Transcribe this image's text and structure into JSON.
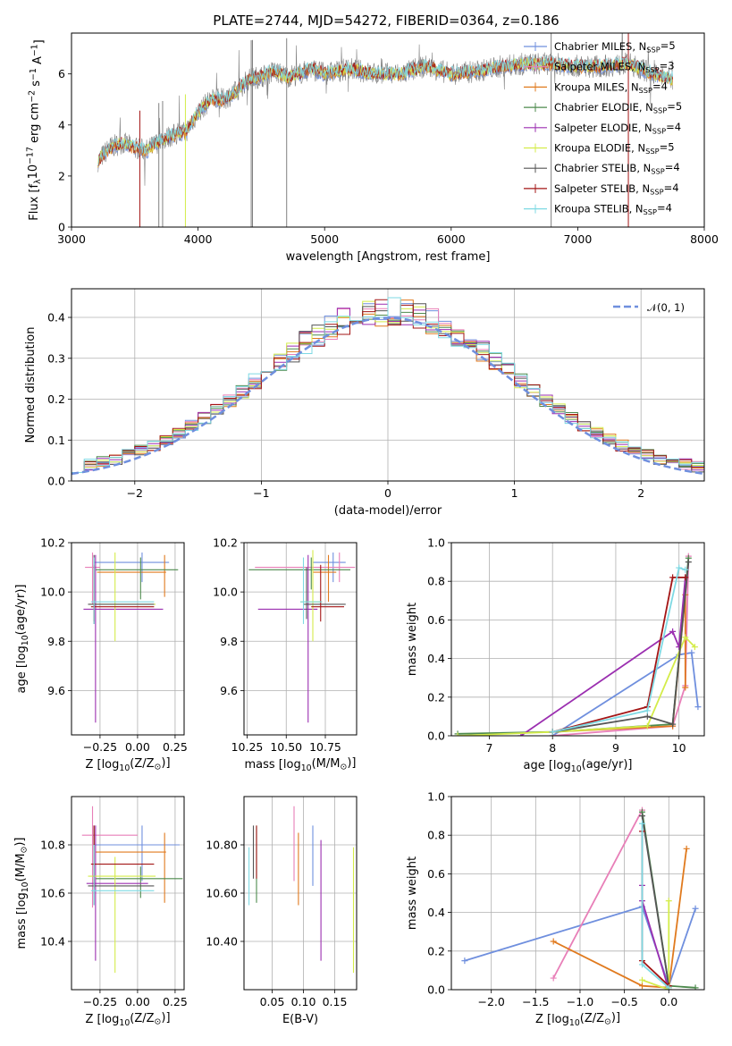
{
  "title": "PLATE=2744, MJD=54272, FIBERID=0364, z=0.186",
  "colors": [
    "#6f8fde",
    "#e87fb8",
    "#e07a1e",
    "#4d8a4d",
    "#9b2fb0",
    "#d4ec4a",
    "#555555",
    "#a31515",
    "#7ed9e3"
  ],
  "legend_labels": [
    "Chabrier MILES, N<sub>SSP</sub>=5",
    "Salpeter MILES, N<sub>SSP</sub>=3",
    "Kroupa MILES, N<sub>SSP</sub>=4",
    "Chabrier ELODIE, N<sub>SSP</sub>=5",
    "Salpeter ELODIE, N<sub>SSP</sub>=4",
    "Kroupa ELODIE, N<sub>SSP</sub>=5",
    "Chabrier STELIB, N<sub>SSP</sub>=4",
    "Salpeter STELIB, N<sub>SSP</sub>=4",
    "Kroupa STELIB, N<sub>SSP</sub>=4"
  ],
  "chart_data": [
    {
      "id": "spectrum",
      "type": "line",
      "xlabel": "wavelength [Angstrom, rest frame]",
      "ylabel": "Flux [f<sub>λ</sub>10<sup>−17</sup> erg cm<sup>−2</sup> s<sup>−1</sup> A<sup>−1</sup>]",
      "xlim": [
        3000,
        8000
      ],
      "ylim": [
        0,
        7.6
      ],
      "xticks": [
        3000,
        4000,
        5000,
        6000,
        7000,
        8000
      ],
      "yticks": [
        0,
        2,
        4,
        6
      ],
      "data_color": "#808080",
      "data_envelope": {
        "x": [
          3210,
          3300,
          3400,
          3500,
          3600,
          3700,
          3800,
          3900,
          4000,
          4100,
          4200,
          4300,
          4400,
          4500,
          4600,
          4700,
          4800,
          4900,
          5000,
          5200,
          5400,
          5600,
          5800,
          6000,
          6200,
          6400,
          6600,
          6800,
          7000,
          7200,
          7400,
          7600,
          7750
        ],
        "y": [
          2.6,
          3.1,
          3.3,
          3.1,
          3.0,
          3.4,
          3.6,
          3.7,
          4.5,
          5.0,
          5.0,
          5.3,
          5.8,
          5.9,
          6.1,
          5.9,
          6.0,
          6.2,
          6.0,
          6.2,
          6.0,
          6.0,
          6.3,
          6.0,
          6.1,
          6.3,
          6.4,
          6.4,
          6.3,
          6.3,
          6.4,
          6.0,
          5.8
        ]
      },
      "deep_spikes_x": [
        3540,
        3690,
        3720,
        3900,
        4420,
        4430,
        4700,
        6790,
        7400
      ],
      "model_color": "#7ed9e3"
    },
    {
      "id": "residuals",
      "type": "step",
      "xlabel": "(data-model)/error",
      "ylabel": "Normed distribution",
      "xlim": [
        -2.5,
        2.5
      ],
      "ylim": [
        0,
        0.47
      ],
      "xticks": [
        -2,
        -1,
        0,
        1,
        2
      ],
      "yticks": [
        0.0,
        0.1,
        0.2,
        0.3,
        0.4
      ],
      "bin_width": 0.1,
      "gaussian_label": "𝒩(0, 1)",
      "gaussian_color": "#6f8fde"
    },
    {
      "id": "age_vs_Z",
      "type": "errorbar",
      "xlabel": "Z [log<sub>10</sub>(Z/Z<sub>⊙</sub>)]",
      "ylabel": "age  [log<sub>10</sub>(age/yr)]",
      "xlim": [
        -0.44,
        0.31
      ],
      "ylim": [
        9.42,
        10.2
      ],
      "xticks": [
        -0.25,
        0.0,
        0.25
      ],
      "xticklabels": [
        "−0.25",
        "0.00",
        "0.25"
      ],
      "yticks": [
        9.6,
        9.8,
        10.0,
        10.2
      ],
      "points": [
        {
          "x": 0.03,
          "xerr": [
            0.32,
            0.18
          ],
          "y": 10.12,
          "yerr": [
            0.08,
            0.04
          ],
          "c": 0
        },
        {
          "x": -0.3,
          "xerr": [
            0.05,
            0.05
          ],
          "y": 10.1,
          "yerr": [
            0.15,
            0.06
          ],
          "c": 1
        },
        {
          "x": 0.18,
          "xerr": [
            0.45,
            0.01
          ],
          "y": 10.08,
          "yerr": [
            0.1,
            0.07
          ],
          "c": 2
        },
        {
          "x": 0.02,
          "xerr": [
            0.3,
            0.25
          ],
          "y": 10.09,
          "yerr": [
            0.12,
            0.05
          ],
          "c": 3
        },
        {
          "x": -0.28,
          "xerr": [
            0.08,
            0.45
          ],
          "y": 9.93,
          "yerr": [
            0.46,
            0.22
          ],
          "c": 4
        },
        {
          "x": -0.15,
          "xerr": [
            0.17,
            0.27
          ],
          "y": 9.95,
          "yerr": [
            0.15,
            0.21
          ],
          "c": 5
        },
        {
          "x": -0.29,
          "xerr": [
            0.04,
            0.4
          ],
          "y": 9.95,
          "yerr": [
            0.08,
            0.2
          ],
          "c": 6
        },
        {
          "x": -0.29,
          "xerr": [
            0.02,
            0.4
          ],
          "y": 9.94,
          "yerr": [
            0.06,
            0.17
          ],
          "c": 7
        },
        {
          "x": -0.29,
          "xerr": [
            0.02,
            0.4
          ],
          "y": 9.96,
          "yerr": [
            0.09,
            0.18
          ],
          "c": 8
        }
      ]
    },
    {
      "id": "age_vs_mass",
      "type": "errorbar",
      "xlabel": "mass [log<sub>10</sub>(M/M<sub>⊙</sub>)]",
      "ylabel": "",
      "xlim": [
        10.23,
        10.95
      ],
      "ylim": [
        9.42,
        10.2
      ],
      "xticks": [
        10.25,
        10.5,
        10.75
      ],
      "xticklabels": [
        "10.25",
        "10.50",
        "10.75"
      ],
      "yticks": [
        9.6,
        9.8,
        10.0,
        10.2
      ],
      "points": [
        {
          "x": 10.8,
          "xerr": [
            0.13,
            0.08
          ],
          "y": 10.12,
          "yerr": [
            0.08,
            0.04
          ],
          "c": 0
        },
        {
          "x": 10.84,
          "xerr": [
            0.54,
            0.1
          ],
          "y": 10.1,
          "yerr": [
            0.06,
            0.06
          ],
          "c": 1
        },
        {
          "x": 10.77,
          "xerr": [
            0.1,
            0.05
          ],
          "y": 10.08,
          "yerr": [
            0.12,
            0.07
          ],
          "c": 2
        },
        {
          "x": 10.66,
          "xerr": [
            0.4,
            0.25
          ],
          "y": 10.09,
          "yerr": [
            0.08,
            0.05
          ],
          "c": 3
        },
        {
          "x": 10.64,
          "xerr": [
            0.32,
            0.06
          ],
          "y": 9.93,
          "yerr": [
            0.46,
            0.22
          ],
          "c": 4
        },
        {
          "x": 10.67,
          "xerr": [
            0.08,
            0.06
          ],
          "y": 9.96,
          "yerr": [
            0.16,
            0.21
          ],
          "c": 5
        },
        {
          "x": 10.63,
          "xerr": [
            0.02,
            0.25
          ],
          "y": 9.95,
          "yerr": [
            0.06,
            0.15
          ],
          "c": 6
        },
        {
          "x": 10.72,
          "xerr": [
            0.06,
            0.15
          ],
          "y": 9.94,
          "yerr": [
            0.06,
            0.17
          ],
          "c": 7
        },
        {
          "x": 10.61,
          "xerr": [
            0.02,
            0.12
          ],
          "y": 9.96,
          "yerr": [
            0.09,
            0.18
          ],
          "c": 8
        }
      ]
    },
    {
      "id": "weight_vs_age",
      "type": "line",
      "xlabel": "age  [log<sub>10</sub>(age/yr)]",
      "ylabel": "mass weight",
      "xlim": [
        6.4,
        10.4
      ],
      "ylim": [
        0,
        1.0
      ],
      "xticks": [
        7,
        8,
        9,
        10
      ],
      "yticks": [
        0.0,
        0.2,
        0.4,
        0.6,
        0.8,
        1.0
      ],
      "series": [
        {
          "c": 0,
          "x": [
            8.0,
            10.0,
            10.2,
            10.3
          ],
          "y": [
            0.0,
            0.42,
            0.43,
            0.15
          ]
        },
        {
          "c": 1,
          "x": [
            8.0,
            9.9,
            10.1,
            10.15
          ],
          "y": [
            0.0,
            0.05,
            0.26,
            0.93
          ]
        },
        {
          "c": 2,
          "x": [
            8.0,
            9.9,
            10.1,
            10.1
          ],
          "y": [
            0.02,
            0.05,
            0.73,
            0.25
          ]
        },
        {
          "c": 3,
          "x": [
            6.5,
            8.0,
            9.9,
            10.15
          ],
          "y": [
            0.01,
            0.02,
            0.06,
            0.92
          ]
        },
        {
          "c": 4,
          "x": [
            7.5,
            9.9,
            10.0,
            10.1
          ],
          "y": [
            0.0,
            0.54,
            0.46,
            0.82
          ]
        },
        {
          "c": 5,
          "x": [
            6.5,
            8.0,
            9.5,
            10.1,
            10.25
          ],
          "y": [
            0.0,
            0.02,
            0.05,
            0.51,
            0.46
          ]
        },
        {
          "c": 6,
          "x": [
            8.0,
            9.5,
            9.9,
            10.15
          ],
          "y": [
            0.02,
            0.1,
            0.06,
            0.9
          ]
        },
        {
          "c": 7,
          "x": [
            8.0,
            9.5,
            9.9,
            10.1
          ],
          "y": [
            0.02,
            0.15,
            0.82,
            0.82
          ]
        },
        {
          "c": 8,
          "x": [
            8.0,
            9.5,
            10.0,
            10.1
          ],
          "y": [
            0.02,
            0.13,
            0.87,
            0.86
          ]
        }
      ]
    },
    {
      "id": "mass_vs_Z",
      "type": "errorbar",
      "xlabel": "Z [log<sub>10</sub>(Z/Z<sub>⊙</sub>)]",
      "ylabel": "mass [log<sub>10</sub>(M/M<sub>⊙</sub>)]",
      "xlim": [
        -0.44,
        0.31
      ],
      "ylim": [
        10.2,
        11.0
      ],
      "xticks": [
        -0.25,
        0.0,
        0.25
      ],
      "xticklabels": [
        "−0.25",
        "0.00",
        "0.25"
      ],
      "yticks": [
        10.4,
        10.6,
        10.8
      ],
      "points": [
        {
          "x": 0.03,
          "xerr": [
            0.32,
            0.25
          ],
          "y": 10.8,
          "yerr": [
            0.15,
            0.08
          ],
          "c": 0
        },
        {
          "x": -0.3,
          "xerr": [
            0.07,
            0.3
          ],
          "y": 10.84,
          "yerr": [
            0.3,
            0.12
          ],
          "c": 1
        },
        {
          "x": 0.18,
          "xerr": [
            0.46,
            0.01
          ],
          "y": 10.77,
          "yerr": [
            0.21,
            0.08
          ],
          "c": 2
        },
        {
          "x": 0.02,
          "xerr": [
            0.3,
            0.28
          ],
          "y": 10.66,
          "yerr": [
            0.08,
            0.05
          ],
          "c": 3
        },
        {
          "x": -0.28,
          "xerr": [
            0.06,
            0.35
          ],
          "y": 10.64,
          "yerr": [
            0.32,
            0.24
          ],
          "c": 4
        },
        {
          "x": -0.15,
          "xerr": [
            0.18,
            0.27
          ],
          "y": 10.67,
          "yerr": [
            0.4,
            0.08
          ],
          "c": 5
        },
        {
          "x": -0.29,
          "xerr": [
            0.04,
            0.4
          ],
          "y": 10.63,
          "yerr": [
            0.08,
            0.25
          ],
          "c": 6
        },
        {
          "x": -0.29,
          "xerr": [
            0.02,
            0.4
          ],
          "y": 10.72,
          "yerr": [
            0.1,
            0.16
          ],
          "c": 7
        },
        {
          "x": -0.29,
          "xerr": [
            0.02,
            0.4
          ],
          "y": 10.61,
          "yerr": [
            0.06,
            0.19
          ],
          "c": 8
        }
      ]
    },
    {
      "id": "mass_vs_EBV",
      "type": "errorbar",
      "xlabel": "E(B-V)",
      "ylabel": "",
      "xlim": [
        0.005,
        0.185
      ],
      "ylim": [
        10.2,
        11.0
      ],
      "xticks": [
        0.05,
        0.1,
        0.15
      ],
      "xticklabels": [
        "0.05",
        "0.10",
        "0.15"
      ],
      "yticks": [
        10.4,
        10.6,
        10.8
      ],
      "points": [
        {
          "x": 0.115,
          "y": 10.75,
          "yerr": [
            0.12,
            0.13
          ],
          "c": 0
        },
        {
          "x": 0.085,
          "y": 10.8,
          "yerr": [
            0.15,
            0.16
          ],
          "c": 1
        },
        {
          "x": 0.092,
          "y": 10.7,
          "yerr": [
            0.15,
            0.15
          ],
          "c": 2
        },
        {
          "x": 0.025,
          "y": 10.68,
          "yerr": [
            0.12,
            0.2
          ],
          "c": 3
        },
        {
          "x": 0.128,
          "y": 10.57,
          "yerr": [
            0.25,
            0.25
          ],
          "c": 4
        },
        {
          "x": 0.18,
          "y": 10.54,
          "yerr": [
            0.27,
            0.25
          ],
          "c": 5
        },
        {
          "x": 0.02,
          "y": 10.72,
          "yerr": [
            0.06,
            0.16
          ],
          "c": 6
        },
        {
          "x": 0.025,
          "y": 10.76,
          "yerr": [
            0.1,
            0.12
          ],
          "c": 7
        },
        {
          "x": 0.013,
          "y": 10.67,
          "yerr": [
            0.12,
            0.12
          ],
          "c": 8
        }
      ]
    },
    {
      "id": "weight_vs_Z",
      "type": "line",
      "xlabel": "Z [log<sub>10</sub>(Z/Z<sub>⊙</sub>)]",
      "ylabel": "mass weight",
      "xlim": [
        -2.45,
        0.4
      ],
      "ylim": [
        0,
        1.0
      ],
      "xticks": [
        -2.0,
        -1.5,
        -1.0,
        -0.5,
        0.0
      ],
      "xticklabels": [
        "−2.0",
        "−1.5",
        "−1.0",
        "−0.5",
        "0.0"
      ],
      "yticks": [
        0.0,
        0.2,
        0.4,
        0.6,
        0.8,
        1.0
      ],
      "series": [
        {
          "c": 0,
          "x": [
            -2.3,
            -0.3,
            0.0,
            0.3
          ],
          "y": [
            0.15,
            0.43,
            0.02,
            0.42
          ]
        },
        {
          "c": 1,
          "x": [
            -1.3,
            -0.3
          ],
          "y": [
            0.06,
            0.93
          ]
        },
        {
          "c": 2,
          "x": [
            -1.3,
            -0.3,
            0.0,
            0.2
          ],
          "y": [
            0.25,
            0.02,
            0.01,
            0.73
          ]
        },
        {
          "c": 3,
          "x": [
            -0.3,
            0.0,
            0.3
          ],
          "y": [
            0.92,
            0.02,
            0.01
          ]
        },
        {
          "c": 4,
          "x": [
            -0.3,
            -0.3,
            0.0
          ],
          "y": [
            0.54,
            0.46,
            0.0
          ]
        },
        {
          "c": 5,
          "x": [
            -0.3,
            0.0,
            0.0
          ],
          "y": [
            0.05,
            0.0,
            0.46
          ]
        },
        {
          "c": 6,
          "x": [
            -0.3,
            0.0
          ],
          "y": [
            0.9,
            0.02
          ]
        },
        {
          "c": 7,
          "x": [
            -0.3,
            -0.3,
            0.0
          ],
          "y": [
            0.82,
            0.15,
            0.02
          ]
        },
        {
          "c": 8,
          "x": [
            -0.3,
            -0.3,
            0.0
          ],
          "y": [
            0.86,
            0.13,
            0.01
          ]
        }
      ]
    }
  ]
}
